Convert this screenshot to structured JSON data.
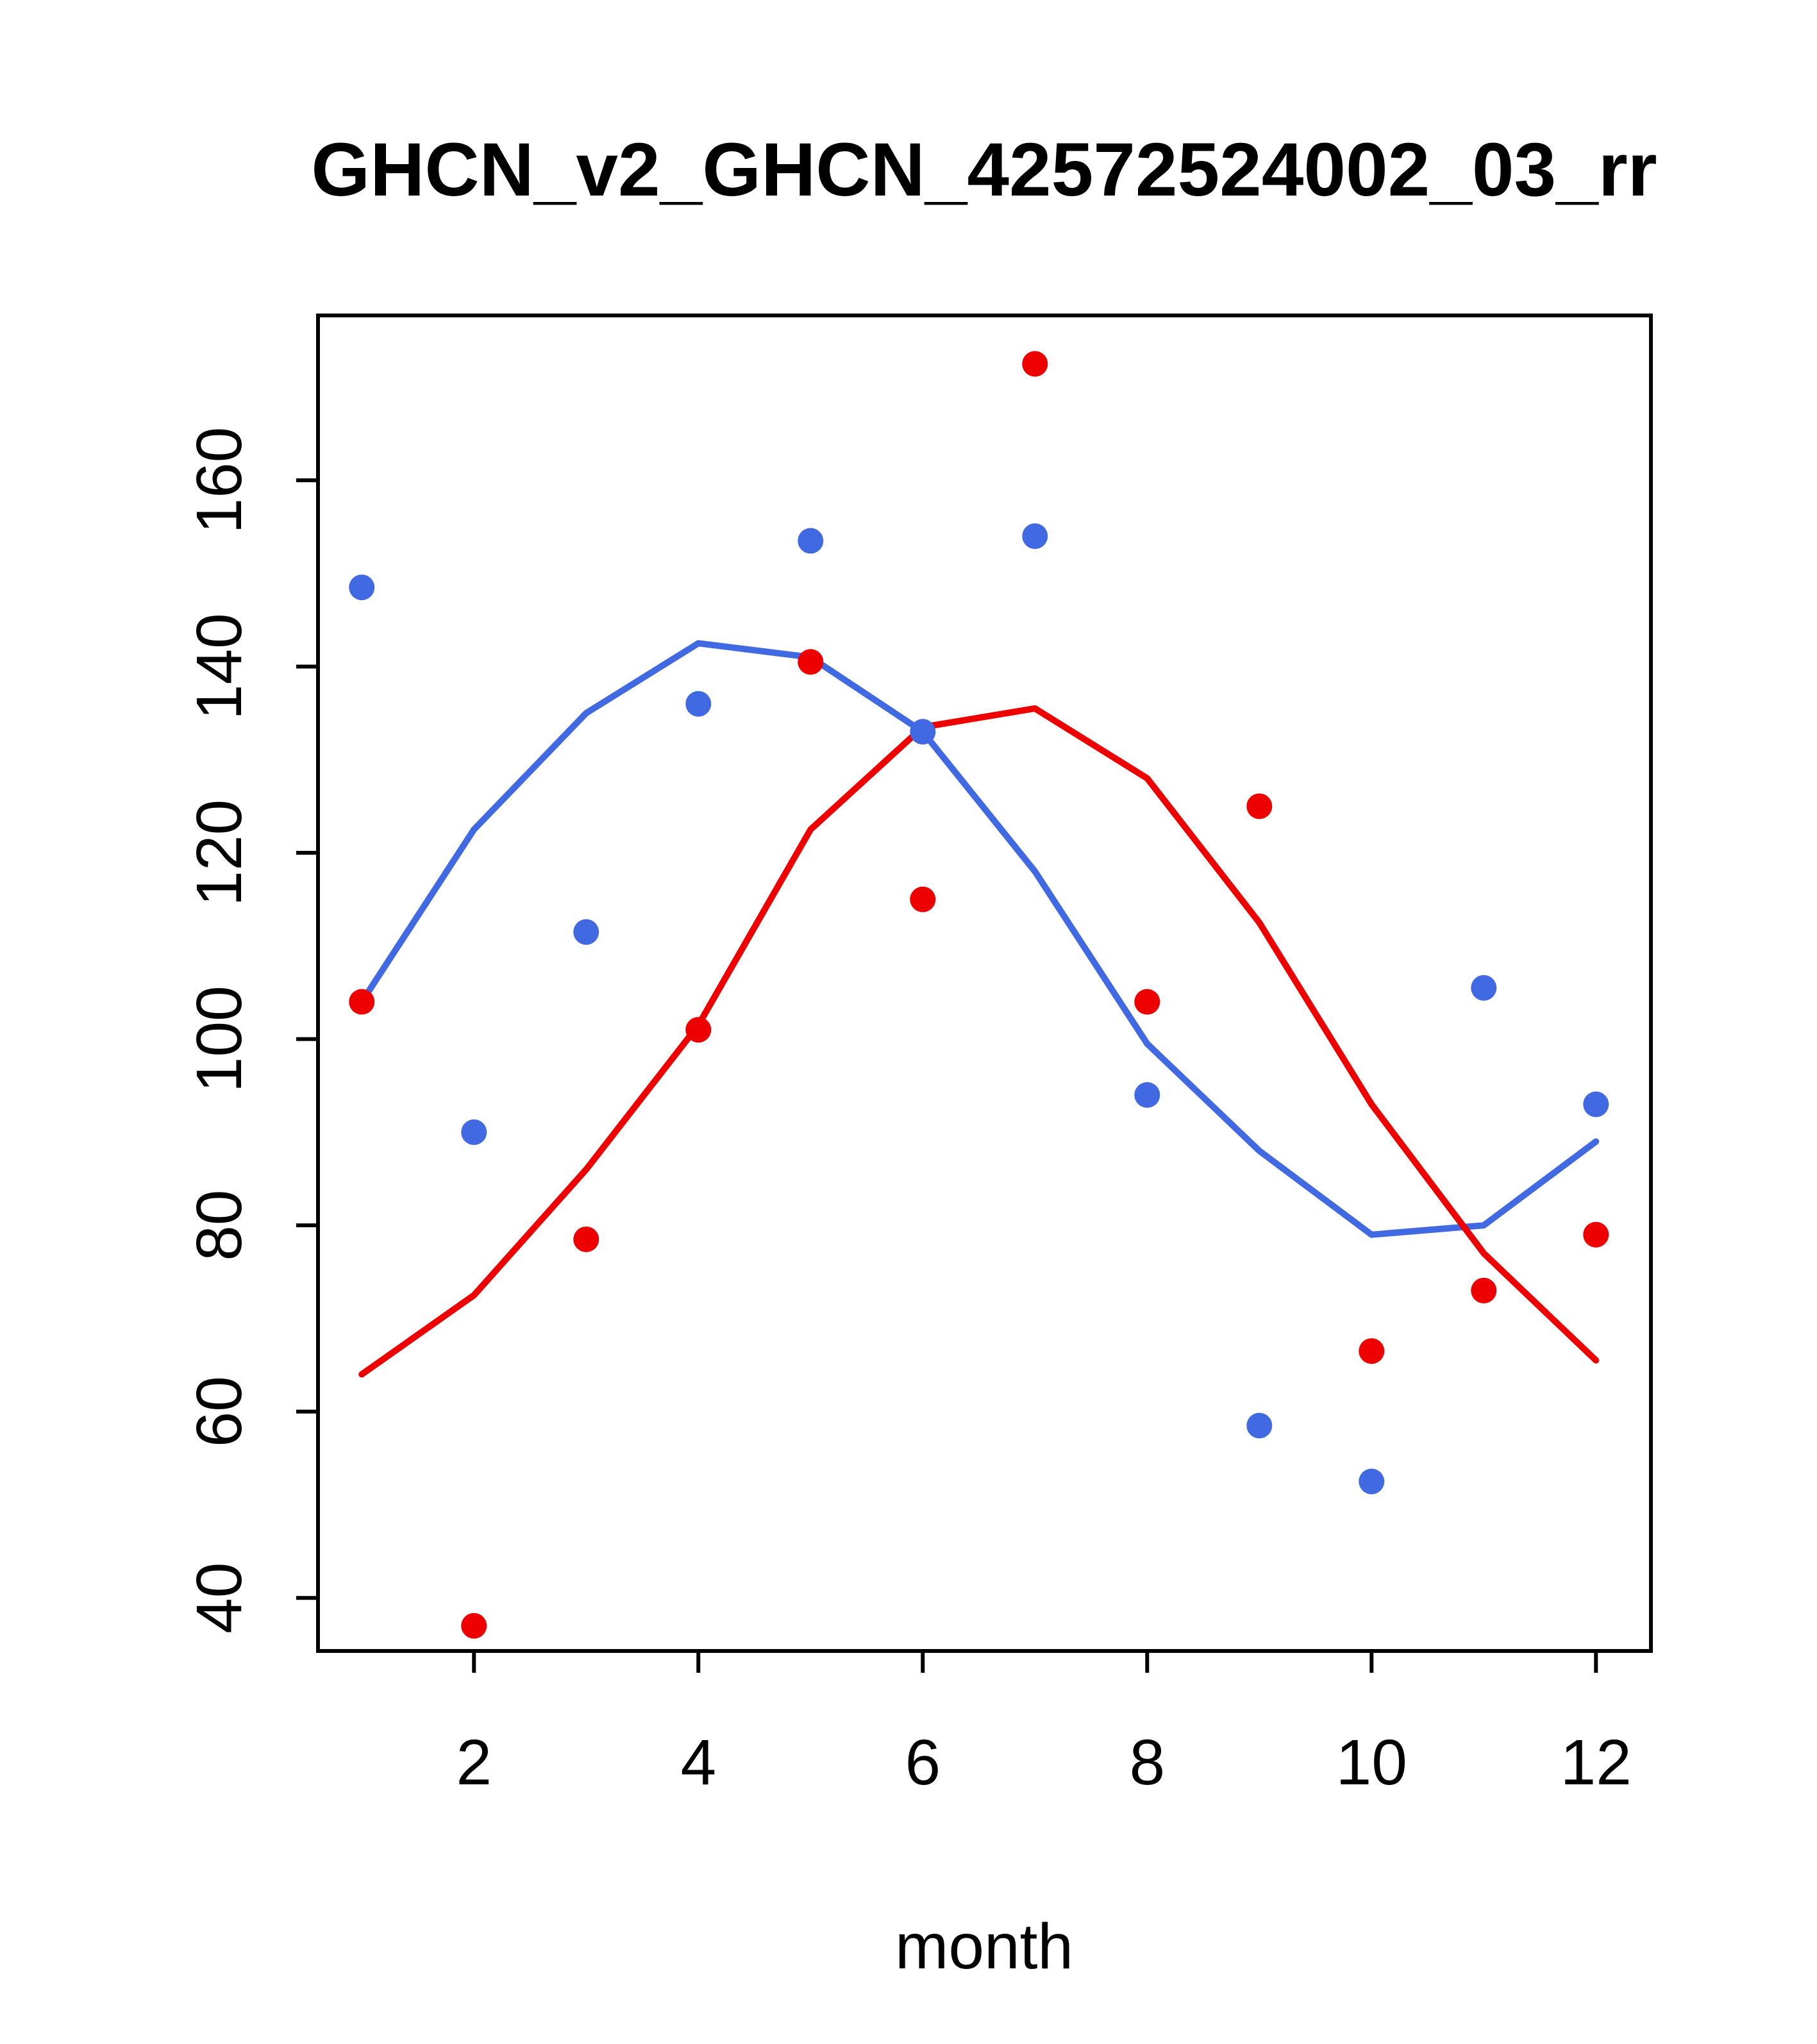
{
  "chart_data": {
    "type": "scatter",
    "title": "GHCN_v2_GHCN_42572524002_03_rr",
    "xlabel": "month",
    "ylabel": "",
    "grid": false,
    "legend": null,
    "x": [
      1,
      2,
      3,
      4,
      5,
      6,
      7,
      8,
      9,
      10,
      11,
      12
    ],
    "xlim": [
      0.61,
      12.49
    ],
    "ylim": [
      34.3,
      177.7
    ],
    "xticks": [
      2,
      4,
      6,
      8,
      10,
      12
    ],
    "yticks": [
      40,
      60,
      80,
      100,
      120,
      140,
      160
    ],
    "colors": {
      "blue": "#4169E1",
      "red": "#EE0000"
    },
    "series": [
      {
        "name": "blue-points",
        "kind": "points",
        "color": "#4169E1",
        "values": [
          148.5,
          90,
          111.5,
          136,
          153.5,
          133,
          154,
          94,
          58.5,
          52.5,
          105.5,
          93
        ]
      },
      {
        "name": "red-points",
        "kind": "points",
        "color": "#EE0000",
        "values": [
          104,
          37,
          78.5,
          101,
          140.5,
          115,
          172.5,
          104,
          125,
          66.5,
          73,
          79
        ]
      },
      {
        "name": "blue-line",
        "kind": "line",
        "color": "#4169E1",
        "values": [
          104,
          122.5,
          135,
          142.5,
          141,
          133,
          118,
          99.5,
          88,
          79,
          80,
          89
        ]
      },
      {
        "name": "red-line",
        "kind": "line",
        "color": "#EE0000",
        "values": [
          64,
          72.5,
          86,
          101.5,
          122.5,
          133.5,
          135.5,
          128,
          112.5,
          93,
          77,
          65.5
        ]
      }
    ]
  }
}
